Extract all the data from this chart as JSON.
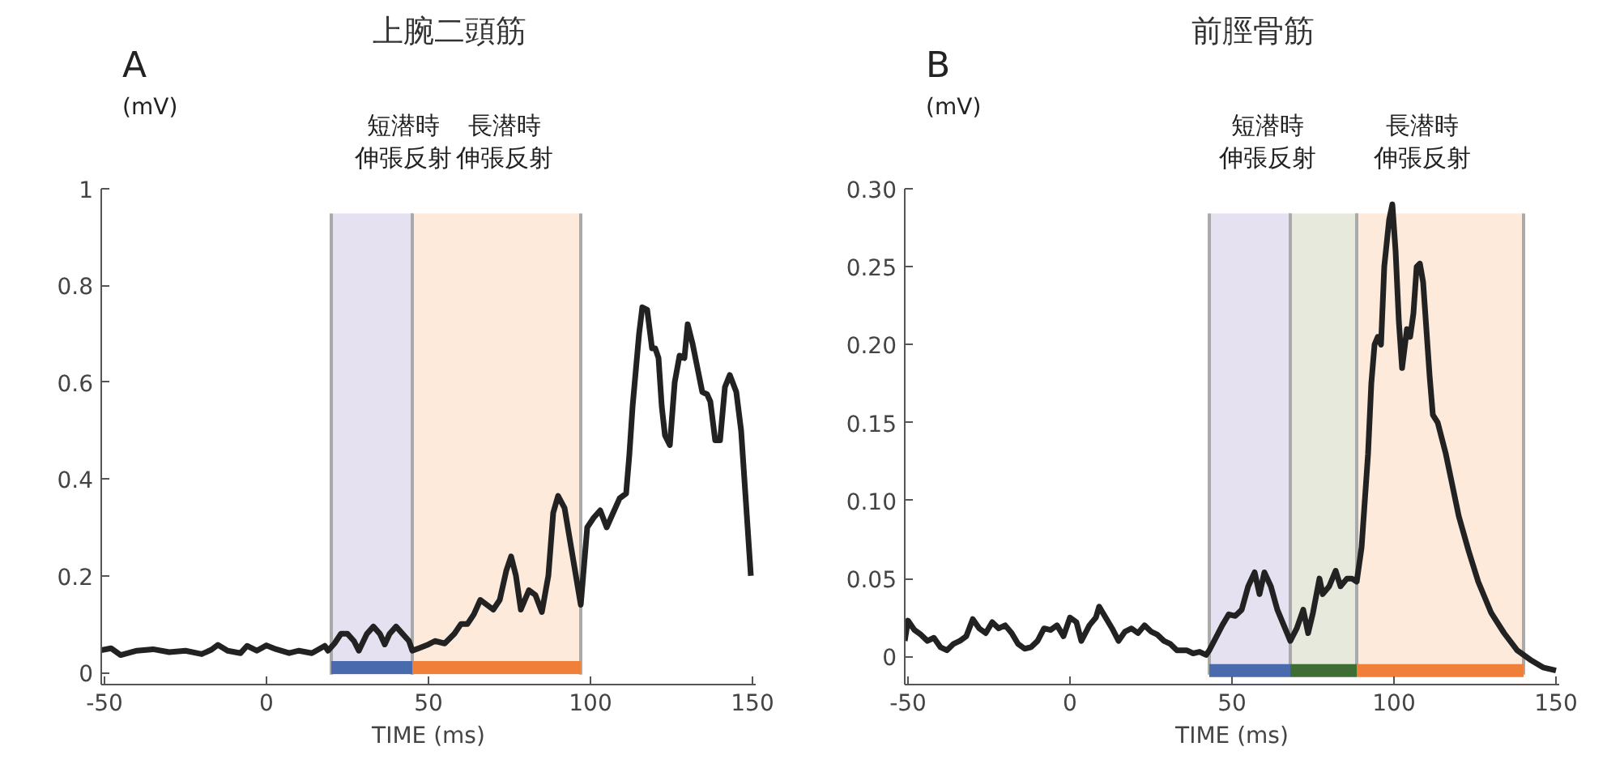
{
  "chart_data": [
    {
      "type": "line",
      "title": "上腕二頭筋",
      "xlabel": "TIME (ms)",
      "ylabel": "(mV)",
      "annotations": [
        "A"
      ],
      "xlim": [
        -51,
        151
      ],
      "ylim": [
        -0.025,
        1
      ],
      "xticks": [
        -50,
        0,
        50,
        100,
        150
      ],
      "yticks": [
        0,
        0.2,
        0.4,
        0.6,
        0.8,
        1
      ],
      "grid": false,
      "marker": "none",
      "line_style": "solid",
      "bands": [
        {
          "axis": "x",
          "from": 20,
          "to": 45,
          "label": "短潜時伸張反射",
          "color": "#e6e1f0"
        },
        {
          "axis": "x",
          "from": 45,
          "to": 97,
          "label": "長潜時伸張反射",
          "color": "#fdeadb"
        }
      ],
      "series": [
        {
          "color": "#4a6aae",
          "x": [
            20,
            45
          ],
          "values": [
            0.01,
            0.01
          ]
        },
        {
          "color": "#f07f3a",
          "x": [
            45,
            97
          ],
          "values": [
            0.01,
            0.01
          ]
        },
        {
          "color": "#222222",
          "x": [
            -51,
            -48,
            -45,
            -40,
            -35,
            -30,
            -25,
            -20,
            -17,
            -15,
            -12,
            -8,
            -6,
            -3,
            0,
            3,
            7,
            10,
            14,
            18,
            19,
            21,
            23,
            25,
            27,
            28.5,
            31,
            33,
            35,
            36.5,
            38,
            40,
            42,
            44,
            45,
            47,
            50,
            52,
            55,
            58,
            60,
            62,
            64,
            66,
            68,
            70,
            72,
            74,
            75.5,
            77,
            78.5,
            81,
            83,
            85,
            87,
            88.5,
            90,
            92,
            94,
            96,
            97,
            99,
            101,
            103,
            105,
            107,
            109,
            111,
            112,
            113,
            115,
            116,
            117.5,
            119,
            120,
            121,
            122,
            123,
            124.5,
            126,
            127.5,
            129,
            130,
            131.5,
            133,
            134.5,
            136,
            137,
            138.5,
            140,
            141.5,
            143,
            145,
            146.5,
            148,
            149.5
          ],
          "values": [
            0.046,
            0.05,
            0.036,
            0.045,
            0.048,
            0.042,
            0.045,
            0.038,
            0.047,
            0.057,
            0.045,
            0.04,
            0.055,
            0.045,
            0.056,
            0.048,
            0.04,
            0.045,
            0.04,
            0.055,
            0.045,
            0.06,
            0.08,
            0.08,
            0.065,
            0.045,
            0.08,
            0.095,
            0.08,
            0.058,
            0.08,
            0.095,
            0.08,
            0.065,
            0.045,
            0.05,
            0.058,
            0.065,
            0.06,
            0.08,
            0.1,
            0.1,
            0.12,
            0.15,
            0.14,
            0.13,
            0.15,
            0.21,
            0.24,
            0.2,
            0.13,
            0.17,
            0.16,
            0.125,
            0.2,
            0.33,
            0.365,
            0.34,
            0.26,
            0.18,
            0.14,
            0.3,
            0.32,
            0.335,
            0.3,
            0.33,
            0.36,
            0.37,
            0.45,
            0.55,
            0.7,
            0.755,
            0.75,
            0.67,
            0.67,
            0.65,
            0.55,
            0.49,
            0.47,
            0.6,
            0.655,
            0.65,
            0.72,
            0.68,
            0.63,
            0.58,
            0.575,
            0.56,
            0.48,
            0.48,
            0.59,
            0.615,
            0.58,
            0.5,
            0.35,
            0.2
          ]
        }
      ]
    },
    {
      "type": "line",
      "title": "前脛骨筋",
      "xlabel": "TIME (ms)",
      "ylabel": "(mV)",
      "annotations": [
        "B"
      ],
      "xlim": [
        -51,
        151
      ],
      "ylim": [
        -0.018,
        0.3
      ],
      "xticks": [
        -50,
        0,
        50,
        100,
        150
      ],
      "yticks": [
        0,
        0.05,
        {
          "value": 0.1,
          "label": "0.10"
        },
        0.15,
        {
          "value": 0.2,
          "label": "0.20"
        },
        0.25,
        {
          "value": 0.3,
          "label": "0.30"
        }
      ],
      "grid": false,
      "marker": "none",
      "line_style": "solid",
      "bands": [
        {
          "axis": "x",
          "from": 43,
          "to": 68,
          "label": "短潜時伸張反射",
          "color": "#e6e1f0"
        },
        {
          "axis": "x",
          "from": 68,
          "to": 88.5,
          "label": null,
          "color": "#e6e9dc"
        },
        {
          "axis": "x",
          "from": 88.5,
          "to": 140,
          "label": "長潜時伸張反射",
          "color": "#fdeadb"
        }
      ],
      "series": [
        {
          "color": "#4a6aae",
          "x": [
            43,
            68
          ],
          "values": [
            -0.009,
            -0.009
          ]
        },
        {
          "color": "#3f6e35",
          "x": [
            68,
            88.5
          ],
          "values": [
            -0.009,
            -0.009
          ]
        },
        {
          "color": "#f07f3a",
          "x": [
            88.5,
            140
          ],
          "values": [
            -0.009,
            -0.009
          ]
        },
        {
          "color": "#222222",
          "x": [
            -51,
            -50,
            -48,
            -46,
            -44,
            -42,
            -40,
            -38,
            -36,
            -34,
            -32,
            -30,
            -28,
            -26,
            -24,
            -22,
            -20,
            -18,
            -16,
            -14,
            -12,
            -10,
            -8,
            -6,
            -4,
            -2,
            0,
            2,
            3.5,
            6,
            8,
            9,
            11,
            13,
            15,
            17,
            19,
            21,
            23,
            25,
            27,
            29,
            31,
            33,
            36,
            38,
            40,
            42,
            43,
            45,
            47,
            49,
            51,
            53,
            55,
            57,
            58.5,
            60,
            62,
            64,
            66,
            68,
            70,
            72,
            73.5,
            75,
            77,
            78,
            80,
            82,
            83.5,
            85.5,
            87,
            88.5,
            90,
            92,
            93,
            94,
            95,
            96,
            97,
            98.5,
            99.5,
            100.5,
            101.5,
            102.5,
            104,
            105,
            106,
            107,
            108,
            109,
            110,
            111,
            112,
            113.5,
            116,
            118,
            120,
            123,
            126,
            130,
            134,
            138,
            142,
            146,
            150
          ],
          "values": [
            0.01,
            0.023,
            0.017,
            0.014,
            0.01,
            0.012,
            0.006,
            0.004,
            0.008,
            0.01,
            0.013,
            0.024,
            0.018,
            0.015,
            0.022,
            0.018,
            0.02,
            0.015,
            0.008,
            0.005,
            0.006,
            0.01,
            0.018,
            0.017,
            0.02,
            0.013,
            0.025,
            0.022,
            0.01,
            0.02,
            0.025,
            0.032,
            0.025,
            0.018,
            0.01,
            0.016,
            0.018,
            0.015,
            0.02,
            0.016,
            0.014,
            0.01,
            0.008,
            0.004,
            0.004,
            0.002,
            0.003,
            0.001,
            0.004,
            0.012,
            0.02,
            0.027,
            0.026,
            0.03,
            0.045,
            0.054,
            0.04,
            0.054,
            0.045,
            0.03,
            0.02,
            0.01,
            0.018,
            0.03,
            0.015,
            0.028,
            0.05,
            0.04,
            0.045,
            0.055,
            0.045,
            0.05,
            0.05,
            0.048,
            0.07,
            0.13,
            0.175,
            0.2,
            0.205,
            0.2,
            0.25,
            0.28,
            0.29,
            0.26,
            0.215,
            0.185,
            0.21,
            0.205,
            0.22,
            0.25,
            0.252,
            0.24,
            0.21,
            0.18,
            0.155,
            0.15,
            0.13,
            0.11,
            0.09,
            0.068,
            0.048,
            0.028,
            0.015,
            0.004,
            -0.002,
            -0.007,
            -0.009
          ]
        }
      ]
    }
  ]
}
